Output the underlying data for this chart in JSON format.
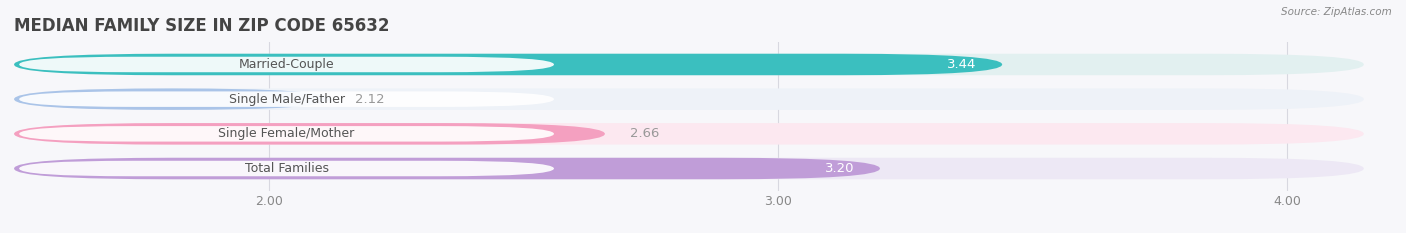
{
  "title": "MEDIAN FAMILY SIZE IN ZIP CODE 65632",
  "source": "Source: ZipAtlas.com",
  "categories": [
    "Married-Couple",
    "Single Male/Father",
    "Single Female/Mother",
    "Total Families"
  ],
  "values": [
    3.44,
    2.12,
    2.66,
    3.2
  ],
  "bar_colors": [
    "#3bbfbf",
    "#aac4e8",
    "#f4a0c0",
    "#c09dd8"
  ],
  "bar_bg_colors": [
    "#e2f0f0",
    "#eef2f8",
    "#fce8f0",
    "#ede8f5"
  ],
  "xlim_left": 1.5,
  "xlim_right": 4.15,
  "xticks": [
    2.0,
    3.0,
    4.0
  ],
  "xtick_labels": [
    "2.00",
    "3.00",
    "4.00"
  ],
  "label_color": "#888888",
  "value_color_outside": "#999999",
  "value_color_inside": "#ffffff",
  "title_fontsize": 12,
  "bar_label_fontsize": 9,
  "value_fontsize": 9.5,
  "background_color": "#f7f7fa",
  "bar_height": 0.62,
  "label_pill_color": "#ffffff",
  "grid_color": "#d8d8e0",
  "inside_threshold": 3.1
}
